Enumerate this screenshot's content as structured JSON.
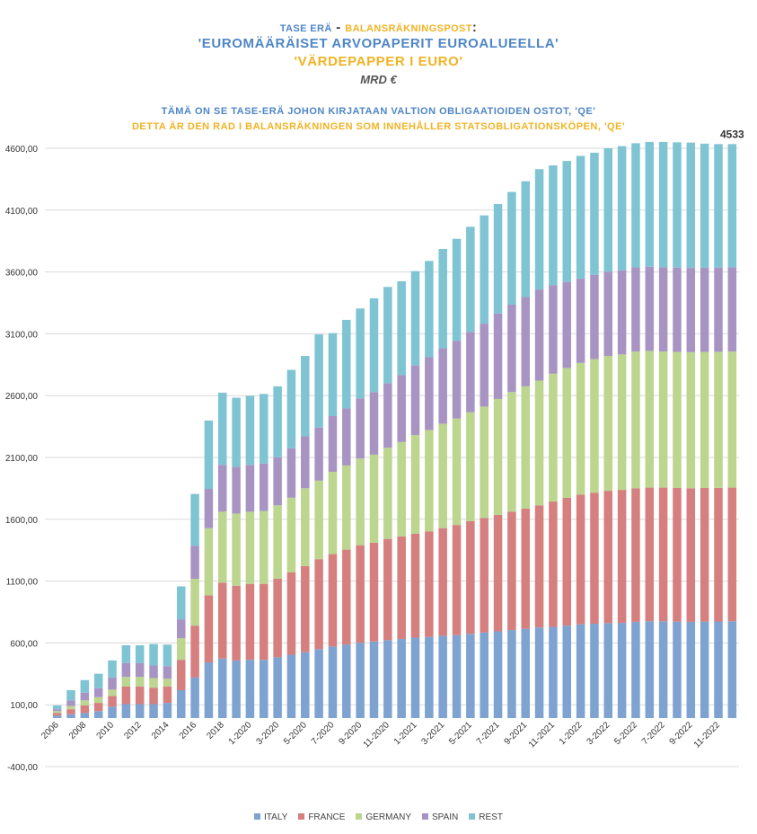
{
  "titles": {
    "line1_a": "TASE ERÄ",
    "line1_sep": " - ",
    "line1_b": "BALANSRÄKNINGSPOST",
    "line1_colon": ":",
    "line2": "'EUROMÄÄRÄISET ARVOPAPERIT EUROALUEELLA'",
    "line3": "'VÄRDEPAPPER I EURO'",
    "line4": "MRD €",
    "line5": "TÄMÄ ON SE TASE-ERÄ JOHON KIRJATAAN VALTION OBLIGAATIOIDEN OSTOT, 'QE'",
    "line6": "DETTA ÄR DEN RAD I BALANSRÄKNINGEN SOM INNEHÅLLER STATSOBLIGATIONSKÖPEN, 'QE'"
  },
  "colors": {
    "ITALY": "#7ea3d1",
    "FRANCE": "#d57f7f",
    "GERMANY": "#bcd58f",
    "SPAIN": "#a894c3",
    "REST": "#7fc4d3",
    "grid": "#d9d9d9",
    "axis_text": "#333333"
  },
  "chart_data": {
    "type": "bar",
    "stacked": true,
    "ylim": [
      -400,
      4600
    ],
    "yticks": [
      "4600,00",
      "4100,00",
      "3600,00",
      "3100,00",
      "2600,00",
      "2100,00",
      "1600,00",
      "1100,00",
      "600,00",
      "100,00",
      "-400,00"
    ],
    "ytick_values": [
      4600,
      4100,
      3600,
      3100,
      2600,
      2100,
      1600,
      1100,
      600,
      100,
      -400
    ],
    "grid": true,
    "legend_position": "bottom",
    "last_label": "4533",
    "x_labels": [
      "2006",
      "",
      "2008",
      "",
      "2010",
      "",
      "2012",
      "",
      "2014",
      "",
      "2016",
      "",
      "2018",
      "",
      "1-2020",
      "",
      "3-2020",
      "",
      "5-2020",
      "",
      "7-2020",
      "",
      "9-2020",
      "",
      "11-2020",
      "",
      "1-2021",
      "",
      "3-2021",
      "",
      "5-2021",
      "",
      "7-2021",
      "",
      "9-2021",
      "",
      "11-2021",
      "",
      "1-2022",
      "",
      "3-2022",
      "",
      "5-2022",
      "",
      "7-2022",
      "",
      "9-2022",
      "",
      "11-2022",
      ""
    ],
    "series": [
      {
        "name": "ITALY",
        "values": [
          20,
          30,
          40,
          55,
          90,
          110,
          110,
          110,
          120,
          220,
          320,
          440,
          470,
          455,
          460,
          460,
          480,
          500,
          520,
          545,
          565,
          580,
          595,
          605,
          615,
          625,
          635,
          640,
          650,
          655,
          665,
          675,
          685,
          695,
          705,
          715,
          720,
          730,
          740,
          745,
          750,
          752,
          760,
          765,
          765,
          762,
          760,
          762,
          763,
          765
        ]
      },
      {
        "name": "FRANCE",
        "values": [
          20,
          40,
          60,
          65,
          85,
          140,
          140,
          130,
          130,
          240,
          410,
          530,
          600,
          590,
          600,
          600,
          620,
          650,
          680,
          710,
          730,
          750,
          770,
          780,
          800,
          810,
          820,
          835,
          850,
          870,
          890,
          905,
          920,
          935,
          950,
          965,
          990,
          1010,
          1025,
          1035,
          1045,
          1050,
          1055,
          1055,
          1055,
          1055,
          1055,
          1055,
          1055,
          1055
        ]
      },
      {
        "name": "GERMANY",
        "values": [
          15,
          25,
          40,
          45,
          50,
          75,
          75,
          75,
          60,
          170,
          370,
          530,
          560,
          570,
          570,
          575,
          580,
          590,
          615,
          620,
          650,
          665,
          685,
          695,
          720,
          745,
          780,
          800,
          825,
          840,
          860,
          880,
          915,
          945,
          965,
          985,
          1010,
          1025,
          1040,
          1055,
          1065,
          1070,
          1080,
          1080,
          1075,
          1075,
          1075,
          1075,
          1075,
          1075
        ]
      },
      {
        "name": "SPAIN",
        "values": [
          15,
          45,
          60,
          70,
          95,
          110,
          110,
          100,
          100,
          150,
          260,
          310,
          370,
          370,
          370,
          375,
          380,
          390,
          410,
          420,
          440,
          450,
          475,
          495,
          510,
          530,
          550,
          575,
          595,
          615,
          635,
          655,
          675,
          690,
          705,
          720,
          700,
          680,
          665,
          665,
          665,
          665,
          665,
          665,
          665,
          665,
          665,
          665,
          665,
          665
        ]
      },
      {
        "name": "REST",
        "values": [
          30,
          80,
          100,
          115,
          135,
          140,
          140,
          170,
          170,
          260,
          410,
          540,
          570,
          545,
          545,
          550,
          560,
          620,
          635,
          735,
          655,
          700,
          710,
          740,
          760,
          740,
          745,
          760,
          785,
          805,
          830,
          855,
          865,
          890,
          915,
          950,
          945,
          955,
          970,
          965,
          975,
          980,
          980,
          985,
          990,
          990,
          990,
          980,
          975,
          973
        ]
      }
    ]
  },
  "legend": {
    "items": [
      "ITALY",
      "FRANCE",
      "GERMANY",
      "SPAIN",
      "REST"
    ]
  }
}
